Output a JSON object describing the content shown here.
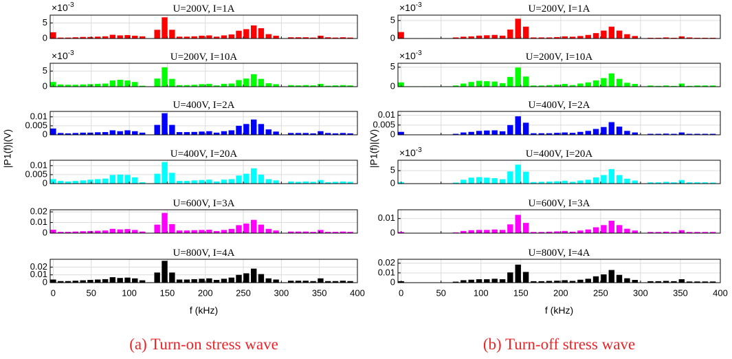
{
  "chart_data": {
    "type": "bar",
    "x": [
      0,
      9.8,
      19.5,
      29.3,
      39.1,
      48.8,
      58.6,
      68.4,
      78.1,
      87.9,
      97.7,
      107.4,
      117.2,
      127.0,
      136.7,
      146.5,
      156.3,
      166.0,
      175.8,
      185.5,
      195.3,
      205.1,
      214.8,
      224.6,
      234.4,
      244.1,
      253.9,
      263.7,
      273.4,
      283.2,
      293.0,
      302.7,
      312.5,
      322.3,
      332.0,
      341.8,
      351.6,
      361.3,
      371.1,
      380.9,
      390.6
    ],
    "xlim": [
      -4,
      400
    ],
    "xticks": [
      0,
      50,
      100,
      150,
      200,
      250,
      300,
      350,
      400
    ],
    "xlabel": "f (kHz)",
    "ylabel": "|P1(f)|(V)",
    "grid": true,
    "columns": [
      {
        "caption": "(a) Turn-on stress wave",
        "panels": [
          {
            "title": "U=200V, I=1A",
            "color": "#ff0000",
            "multiplier": {
              "base": "×10",
              "exponent": "-3"
            },
            "ylim": [
              0,
              7.5
            ],
            "yticks": [
              0,
              5
            ],
            "values": [
              2.0,
              0.3,
              0.3,
              0.4,
              0.5,
              0.5,
              0.6,
              0.7,
              1.2,
              1.0,
              1.1,
              0.9,
              0.7,
              0.1,
              2.8,
              6.8,
              2.8,
              0.6,
              0.6,
              0.7,
              0.9,
              1.0,
              0.6,
              1.0,
              1.3,
              2.5,
              3.0,
              4.2,
              3.3,
              1.4,
              0.9,
              0.1,
              0.4,
              0.4,
              0.4,
              0.3,
              0.9,
              0.4,
              0.3,
              0.4,
              0.3
            ]
          },
          {
            "title": "U=200V, I=10A",
            "color": "#00ff00",
            "multiplier": {
              "base": "×10",
              "exponent": "-3"
            },
            "ylim": [
              0,
              7.5
            ],
            "yticks": [
              0,
              5
            ],
            "values": [
              1.5,
              0.7,
              0.6,
              0.6,
              0.7,
              0.8,
              0.9,
              1.0,
              2.0,
              2.2,
              2.0,
              1.5,
              0.3,
              0.1,
              2.6,
              6.2,
              2.5,
              0.5,
              0.5,
              0.6,
              0.8,
              0.9,
              0.4,
              0.9,
              1.0,
              2.1,
              2.6,
              4.0,
              2.5,
              1.1,
              0.8,
              0.1,
              0.5,
              0.4,
              0.5,
              0.4,
              0.9,
              0.3,
              0.4,
              0.5,
              0.4
            ]
          },
          {
            "title": "U=400V, I=2A",
            "color": "#0000ff",
            "ylim": [
              0,
              0.013
            ],
            "yticks": [
              0,
              0.005,
              0.01
            ],
            "values": [
              0.0035,
              0.001,
              0.0008,
              0.001,
              0.0012,
              0.0012,
              0.0014,
              0.0015,
              0.0025,
              0.002,
              0.0025,
              0.002,
              0.0012,
              0.0002,
              0.0055,
              0.012,
              0.0055,
              0.0015,
              0.0015,
              0.0016,
              0.0018,
              0.002,
              0.0012,
              0.002,
              0.0025,
              0.005,
              0.006,
              0.0085,
              0.006,
              0.003,
              0.0018,
              0.0002,
              0.001,
              0.001,
              0.001,
              0.0008,
              0.002,
              0.001,
              0.0008,
              0.001,
              0.0008
            ]
          },
          {
            "title": "U=400V, I=20A",
            "color": "#00ffff",
            "ylim": [
              0,
              0.013
            ],
            "yticks": [
              0,
              0.005,
              0.01
            ],
            "values": [
              0.0025,
              0.0015,
              0.0012,
              0.0015,
              0.0018,
              0.0022,
              0.0025,
              0.0028,
              0.0048,
              0.005,
              0.0048,
              0.0035,
              0.0008,
              0.0002,
              0.0055,
              0.012,
              0.006,
              0.0015,
              0.0015,
              0.0018,
              0.002,
              0.0022,
              0.0012,
              0.0022,
              0.0025,
              0.0045,
              0.0055,
              0.0085,
              0.005,
              0.0025,
              0.0018,
              0.0002,
              0.0012,
              0.001,
              0.0012,
              0.001,
              0.002,
              0.0008,
              0.001,
              0.0012,
              0.001
            ]
          },
          {
            "title": "U=600V, I=3A",
            "color": "#ff00ff",
            "ylim": [
              0,
              0.022
            ],
            "yticks": [
              0,
              0.01,
              0.02
            ],
            "values": [
              0.0032,
              0.0012,
              0.0012,
              0.0015,
              0.0018,
              0.002,
              0.0022,
              0.0025,
              0.004,
              0.0035,
              0.0038,
              0.003,
              0.0015,
              0.0003,
              0.008,
              0.019,
              0.0085,
              0.0025,
              0.0025,
              0.0028,
              0.003,
              0.0032,
              0.002,
              0.003,
              0.004,
              0.0075,
              0.009,
              0.0125,
              0.008,
              0.004,
              0.0025,
              0.0003,
              0.0015,
              0.0015,
              0.0015,
              0.0012,
              0.003,
              0.0012,
              0.0012,
              0.0015,
              0.0012
            ]
          },
          {
            "title": "U=800V, I=4A",
            "color": "#000000",
            "ylim": [
              0,
              0.03
            ],
            "yticks": [
              0,
              0.01,
              0.02
            ],
            "values": [
              0.004,
              0.002,
              0.002,
              0.0025,
              0.003,
              0.0035,
              0.004,
              0.0045,
              0.007,
              0.006,
              0.0065,
              0.0055,
              0.003,
              0.0005,
              0.013,
              0.028,
              0.013,
              0.004,
              0.004,
              0.0045,
              0.005,
              0.0055,
              0.0035,
              0.005,
              0.0065,
              0.01,
              0.012,
              0.018,
              0.011,
              0.0055,
              0.004,
              0.0005,
              0.0025,
              0.0025,
              0.0025,
              0.002,
              0.0055,
              0.002,
              0.002,
              0.0025,
              0.002
            ]
          }
        ]
      },
      {
        "caption": "(b) Turn-off stress wave",
        "panels": [
          {
            "title": "U=200V, I=1A",
            "color": "#ff0000",
            "multiplier": {
              "base": "×10",
              "exponent": "-3"
            },
            "ylim": [
              0,
              6.5
            ],
            "yticks": [
              0,
              5
            ],
            "values": [
              1.8,
              0.1,
              0.1,
              0.1,
              0.1,
              0.1,
              0.1,
              0.3,
              0.5,
              0.6,
              0.8,
              0.9,
              1.0,
              0.8,
              2.5,
              5.5,
              3.3,
              0.3,
              0.3,
              0.3,
              0.4,
              0.6,
              0.5,
              0.7,
              1.0,
              1.5,
              2.2,
              3.3,
              2.2,
              1.2,
              0.7,
              0.1,
              0.2,
              0.2,
              0.3,
              0.2,
              0.6,
              0.3,
              0.2,
              0.2,
              0.2
            ]
          },
          {
            "title": "U=200V, I=10A",
            "color": "#00ff00",
            "multiplier": {
              "base": "×10",
              "exponent": "-3"
            },
            "ylim": [
              0,
              6
            ],
            "yticks": [
              0,
              5
            ],
            "values": [
              1.1,
              0.1,
              0.1,
              0.1,
              0.1,
              0.1,
              0.1,
              0.3,
              0.8,
              1.2,
              1.5,
              1.4,
              1.3,
              0.9,
              2.5,
              4.9,
              2.6,
              0.3,
              0.3,
              0.4,
              0.5,
              0.7,
              0.4,
              0.8,
              1.1,
              1.6,
              2.2,
              3.4,
              2.0,
              1.0,
              0.7,
              0.1,
              0.3,
              0.2,
              0.3,
              0.2,
              0.8,
              0.2,
              0.3,
              0.3,
              0.3
            ]
          },
          {
            "title": "U=400V, I=2A",
            "color": "#0000ff",
            "ylim": [
              0,
              0.012
            ],
            "yticks": [
              0,
              0.005,
              0.01
            ],
            "values": [
              0.0015,
              0.0001,
              0.0001,
              0.0001,
              0.0001,
              0.0001,
              0.0001,
              0.0005,
              0.0012,
              0.0015,
              0.002,
              0.0022,
              0.0023,
              0.0018,
              0.005,
              0.0095,
              0.0062,
              0.0008,
              0.0008,
              0.0008,
              0.001,
              0.0012,
              0.001,
              0.0015,
              0.002,
              0.003,
              0.004,
              0.0065,
              0.0042,
              0.002,
              0.0012,
              0.0001,
              0.0005,
              0.0005,
              0.0006,
              0.0005,
              0.0012,
              0.0005,
              0.0005,
              0.0005,
              0.0005
            ]
          },
          {
            "title": "U=400V, I=20A",
            "color": "#00ffff",
            "multiplier": {
              "base": "×10",
              "exponent": "-3"
            },
            "ylim": [
              0,
              9
            ],
            "yticks": [
              0,
              5
            ],
            "values": [
              0.6,
              0.1,
              0.1,
              0.1,
              0.1,
              0.1,
              0.1,
              0.4,
              1.5,
              2.3,
              2.5,
              2.3,
              2.1,
              1.7,
              4.7,
              7.3,
              4.6,
              0.6,
              0.7,
              0.8,
              0.9,
              1.1,
              0.7,
              1.2,
              1.5,
              2.4,
              3.3,
              5.6,
              3.3,
              1.9,
              1.2,
              0.1,
              0.5,
              0.5,
              0.7,
              0.5,
              1.4,
              0.5,
              0.5,
              0.5,
              0.4
            ]
          },
          {
            "title": "U=600V, I=3A",
            "color": "#ff00ff",
            "ylim": [
              0,
              0.016
            ],
            "yticks": [
              0,
              0.01
            ],
            "values": [
              0.0008,
              0.0001,
              0.0001,
              0.0001,
              0.0001,
              0.0001,
              0.0001,
              0.0005,
              0.0015,
              0.002,
              0.0022,
              0.0022,
              0.0025,
              0.0022,
              0.006,
              0.0125,
              0.007,
              0.0008,
              0.0008,
              0.001,
              0.0012,
              0.0015,
              0.001,
              0.0018,
              0.0025,
              0.004,
              0.0055,
              0.0085,
              0.0055,
              0.003,
              0.0018,
              0.0001,
              0.0008,
              0.0008,
              0.001,
              0.0008,
              0.002,
              0.0008,
              0.0008,
              0.0008,
              0.0008
            ]
          },
          {
            "title": "U=800V, I=4A",
            "color": "#000000",
            "ylim": [
              0,
              0.024
            ],
            "yticks": [
              0,
              0.01,
              0.02
            ],
            "values": [
              0.0015,
              0.0002,
              0.0002,
              0.0002,
              0.0002,
              0.0002,
              0.0002,
              0.001,
              0.0025,
              0.003,
              0.0035,
              0.0035,
              0.004,
              0.0035,
              0.0105,
              0.0185,
              0.011,
              0.0015,
              0.0015,
              0.0018,
              0.002,
              0.0025,
              0.0018,
              0.003,
              0.004,
              0.0065,
              0.0085,
              0.013,
              0.008,
              0.0045,
              0.0028,
              0.0002,
              0.0015,
              0.0015,
              0.0018,
              0.0015,
              0.0035,
              0.0012,
              0.0012,
              0.0012,
              0.0012
            ]
          }
        ]
      }
    ]
  }
}
